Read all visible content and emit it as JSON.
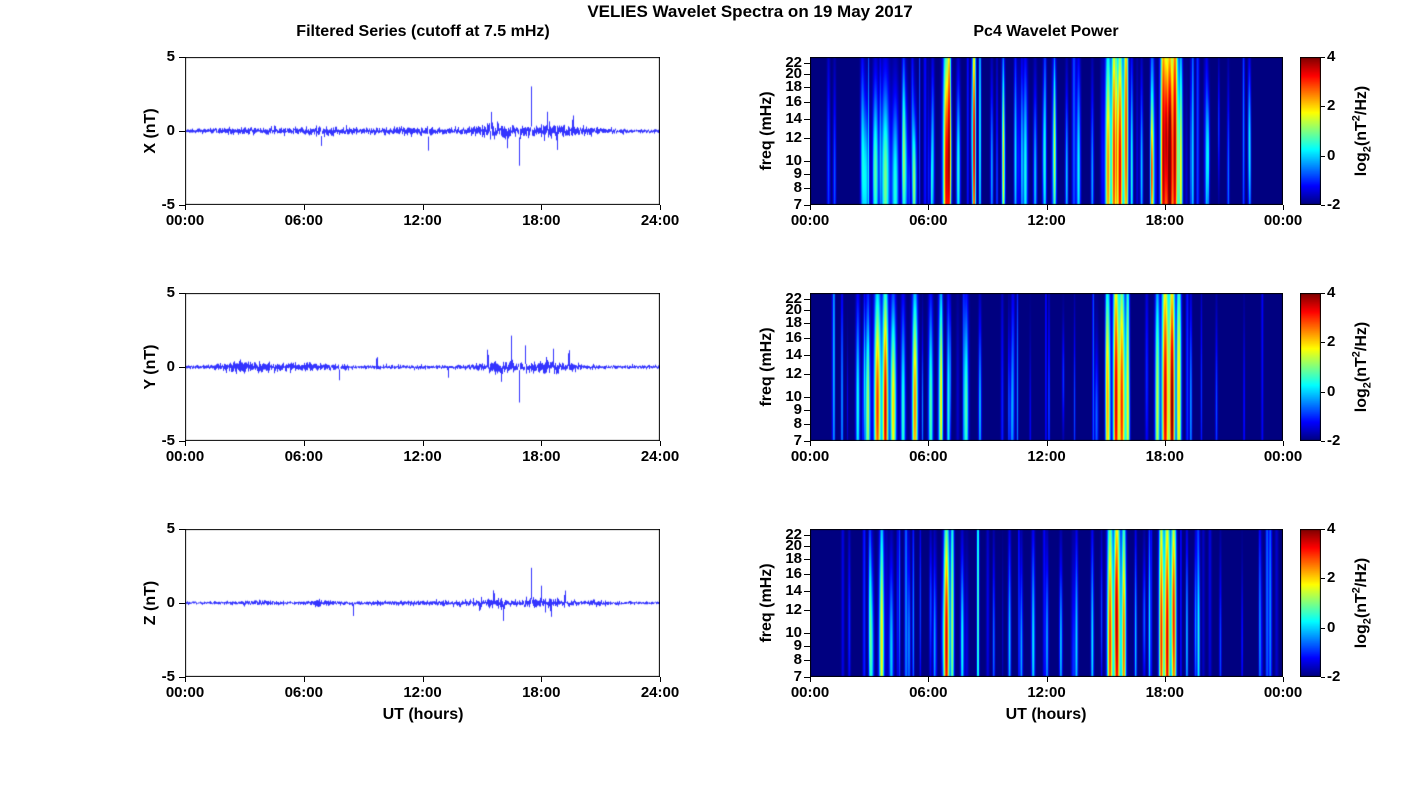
{
  "chart_data": {
    "figure_title": "VELIES Wavelet Spectra on 19 May 2017",
    "left_column": {
      "title": "Filtered Series (cutoff at 7.5 mHz)",
      "type": "line",
      "xlabel": "UT (hours)",
      "x_tick_labels": [
        "00:00",
        "06:00",
        "12:00",
        "18:00",
        "24:00"
      ],
      "x_tick_hours": [
        0,
        6,
        12,
        18,
        24
      ],
      "xlim_hours": [
        0,
        24
      ],
      "ylim": [
        -5,
        5
      ],
      "y_tick_labels": [
        "5",
        "0",
        "-5"
      ],
      "y_tick_values": [
        5,
        0,
        -5
      ],
      "line_color": "#0000FF",
      "envelope_format": [
        "t_hours",
        "width_hours",
        "extra_noise_amp_nT"
      ],
      "spike_format": [
        "t_hours",
        "amplitude_nT"
      ],
      "panels": [
        {
          "ylabel": "X (nT)",
          "base_noise": 0.07,
          "envelope": [
            [
              3.5,
              1.2,
              0.05
            ],
            [
              7.0,
              0.8,
              0.07
            ],
            [
              11.0,
              2.5,
              0.06
            ],
            [
              15.7,
              0.8,
              0.15
            ],
            [
              18.5,
              1.0,
              0.16
            ],
            [
              20.5,
              0.8,
              0.05
            ]
          ],
          "spikes": [
            [
              6.9,
              -1.3
            ],
            [
              12.3,
              -1.4
            ],
            [
              15.5,
              1.2
            ],
            [
              16.3,
              -1.1
            ],
            [
              16.9,
              -2.3
            ],
            [
              17.5,
              2.9
            ],
            [
              18.3,
              1.3
            ],
            [
              18.8,
              -1.2
            ],
            [
              19.6,
              1.0
            ]
          ]
        },
        {
          "ylabel": "Y (nT)",
          "base_noise": 0.06,
          "envelope": [
            [
              2.5,
              0.6,
              0.1
            ],
            [
              3.8,
              0.8,
              0.1
            ],
            [
              5.5,
              0.5,
              0.06
            ],
            [
              7.0,
              0.8,
              0.05
            ],
            [
              15.8,
              0.7,
              0.14
            ],
            [
              18.3,
              1.0,
              0.14
            ]
          ],
          "spikes": [
            [
              7.8,
              -0.9
            ],
            [
              9.7,
              0.7
            ],
            [
              13.3,
              -0.7
            ],
            [
              15.3,
              1.1
            ],
            [
              16.0,
              -1.2
            ],
            [
              16.5,
              2.2
            ],
            [
              16.9,
              -2.1
            ],
            [
              17.2,
              1.7
            ],
            [
              18.6,
              1.2
            ],
            [
              19.4,
              1.1
            ]
          ]
        },
        {
          "ylabel": "Z (nT)",
          "base_noise": 0.05,
          "envelope": [
            [
              3.5,
              0.7,
              0.05
            ],
            [
              7.0,
              0.5,
              0.06
            ],
            [
              12.5,
              2.0,
              0.04
            ],
            [
              15.5,
              0.7,
              0.1
            ],
            [
              18.2,
              0.9,
              0.12
            ],
            [
              21.0,
              0.6,
              0.04
            ]
          ],
          "spikes": [
            [
              8.5,
              -0.8
            ],
            [
              14.9,
              -0.6
            ],
            [
              15.6,
              0.9
            ],
            [
              16.1,
              -1.1
            ],
            [
              17.5,
              2.5
            ],
            [
              18.0,
              1.2
            ],
            [
              18.5,
              -0.9
            ],
            [
              19.2,
              0.8
            ]
          ]
        }
      ]
    },
    "right_column": {
      "title": "Pc4 Wavelet Power",
      "type": "heatmap",
      "xlabel": "UT (hours)",
      "x_tick_labels": [
        "00:00",
        "06:00",
        "12:00",
        "18:00",
        "00:00"
      ],
      "x_tick_hours": [
        0,
        6,
        12,
        18,
        24
      ],
      "ylabel": "freq (mHz)",
      "freq_tick_labels": [
        "22",
        "20",
        "18",
        "16",
        "14",
        "12",
        "10",
        "9",
        "8",
        "7"
      ],
      "freq_tick_values": [
        22,
        20,
        18,
        16,
        14,
        12,
        10,
        9,
        8,
        7
      ],
      "freq_lim_mhz": [
        7,
        23
      ],
      "freq_scale": "log",
      "colormap": "jet",
      "colorbar": {
        "label": "log_2(nT^2/Hz)",
        "label_parts": [
          "log",
          "2",
          "(nT",
          "2",
          "/Hz)"
        ],
        "tick_labels": [
          "4",
          "2",
          "0",
          "-2"
        ],
        "tick_values": [
          4,
          2,
          0,
          -2
        ],
        "range": [
          -2,
          4
        ]
      },
      "event_format": [
        "t_hours",
        "sigma_t_hours",
        "freq_mhz",
        "sigma_lnf",
        "peak_log2_power"
      ],
      "panels": [
        {
          "component": "X",
          "minor_streaks": 55,
          "events": [
            [
              2.8,
              0.12,
              8.5,
              0.45,
              2.2
            ],
            [
              3.3,
              0.1,
              9,
              0.5,
              2.8
            ],
            [
              3.8,
              0.15,
              8.5,
              0.55,
              3.0
            ],
            [
              4.3,
              0.12,
              8,
              0.5,
              2.5
            ],
            [
              4.8,
              0.1,
              9,
              0.45,
              2.0
            ],
            [
              5.3,
              0.08,
              8.5,
              0.4,
              1.8
            ],
            [
              6.2,
              0.06,
              10,
              0.5,
              2.0
            ],
            [
              6.9,
              0.12,
              9,
              0.8,
              5.5
            ],
            [
              7.05,
              0.05,
              14,
              0.9,
              3.2
            ],
            [
              7.5,
              0.07,
              9,
              0.5,
              2.5
            ],
            [
              8.3,
              0.06,
              10,
              1.1,
              5.0
            ],
            [
              8.6,
              0.04,
              12,
              1.0,
              2.5
            ],
            [
              9.2,
              0.05,
              9,
              0.5,
              1.8
            ],
            [
              9.8,
              0.06,
              8.5,
              0.5,
              2.0
            ],
            [
              10.4,
              0.05,
              10,
              0.6,
              2.2
            ],
            [
              10.9,
              0.08,
              9,
              0.6,
              2.4
            ],
            [
              11.4,
              0.06,
              8.5,
              0.5,
              2.0
            ],
            [
              11.9,
              0.05,
              10,
              0.7,
              2.2
            ],
            [
              12.4,
              0.06,
              9,
              0.5,
              1.8
            ],
            [
              13.0,
              0.05,
              8.5,
              0.5,
              2.0
            ],
            [
              13.6,
              0.07,
              9,
              0.6,
              2.3
            ],
            [
              14.3,
              0.05,
              8.5,
              0.5,
              1.8
            ],
            [
              15.1,
              0.1,
              9,
              0.8,
              4.5
            ],
            [
              15.4,
              0.08,
              10,
              1.0,
              5.0
            ],
            [
              15.7,
              0.1,
              9,
              0.9,
              5.5
            ],
            [
              16.0,
              0.08,
              12,
              1.0,
              4.0
            ],
            [
              16.3,
              0.05,
              9,
              0.6,
              2.5
            ],
            [
              16.8,
              0.05,
              9,
              0.5,
              2.0
            ],
            [
              17.3,
              0.05,
              10,
              0.7,
              2.2
            ],
            [
              17.9,
              0.1,
              10,
              1.1,
              5.5
            ],
            [
              18.2,
              0.12,
              9,
              1.0,
              6.0
            ],
            [
              18.5,
              0.1,
              11,
              1.1,
              5.5
            ],
            [
              18.8,
              0.06,
              9,
              0.8,
              3.5
            ],
            [
              19.4,
              0.04,
              10,
              0.9,
              2.2
            ],
            [
              20.1,
              0.05,
              9,
              0.6,
              2.0
            ],
            [
              21.2,
              0.04,
              8.5,
              0.5,
              1.5
            ],
            [
              22.3,
              0.04,
              9,
              0.5,
              1.3
            ]
          ]
        },
        {
          "component": "Y",
          "minor_streaks": 28,
          "events": [
            [
              1.6,
              0.04,
              9,
              0.7,
              1.8
            ],
            [
              2.4,
              0.07,
              9,
              0.6,
              2.4
            ],
            [
              2.9,
              0.1,
              8.5,
              0.6,
              3.0
            ],
            [
              3.4,
              0.12,
              9,
              0.7,
              5.0
            ],
            [
              3.8,
              0.1,
              8.5,
              0.8,
              5.5
            ],
            [
              4.2,
              0.1,
              9,
              0.6,
              4.0
            ],
            [
              4.7,
              0.08,
              8.5,
              0.6,
              2.6
            ],
            [
              5.3,
              0.1,
              9,
              0.7,
              4.5
            ],
            [
              6.1,
              0.08,
              9,
              0.6,
              2.8
            ],
            [
              6.6,
              0.08,
              9.5,
              0.7,
              3.0
            ],
            [
              7.0,
              0.06,
              9,
              0.6,
              2.5
            ],
            [
              7.9,
              0.08,
              9,
              0.6,
              2.8
            ],
            [
              8.6,
              0.05,
              9,
              0.5,
              2.0
            ],
            [
              10.5,
              0.03,
              10,
              0.8,
              1.6
            ],
            [
              12.1,
              0.03,
              9,
              0.6,
              1.4
            ],
            [
              13.4,
              0.03,
              9,
              0.5,
              1.2
            ],
            [
              15.1,
              0.08,
              9,
              0.8,
              4.0
            ],
            [
              15.5,
              0.1,
              9.5,
              1.0,
              5.5
            ],
            [
              15.8,
              0.1,
              9,
              0.9,
              5.0
            ],
            [
              16.1,
              0.06,
              11,
              0.9,
              3.5
            ],
            [
              17.6,
              0.08,
              9,
              0.8,
              3.5
            ],
            [
              18.0,
              0.12,
              9.5,
              1.0,
              5.5
            ],
            [
              18.35,
              0.1,
              9,
              1.0,
              6.0
            ],
            [
              18.7,
              0.08,
              10,
              0.9,
              4.0
            ],
            [
              19.3,
              0.04,
              9,
              0.6,
              1.8
            ],
            [
              20.6,
              0.04,
              9,
              0.5,
              1.2
            ],
            [
              22.0,
              0.03,
              8.5,
              0.5,
              1.0
            ]
          ]
        },
        {
          "component": "Z",
          "minor_streaks": 42,
          "events": [
            [
              3.1,
              0.08,
              8.5,
              0.5,
              2.2
            ],
            [
              3.6,
              0.1,
              9,
              0.6,
              2.6
            ],
            [
              4.1,
              0.08,
              8.5,
              0.5,
              2.0
            ],
            [
              5.0,
              0.05,
              9,
              0.5,
              1.6
            ],
            [
              6.3,
              0.05,
              9,
              0.5,
              1.8
            ],
            [
              6.9,
              0.1,
              9,
              0.8,
              5.5
            ],
            [
              7.2,
              0.06,
              12,
              0.9,
              3.0
            ],
            [
              7.7,
              0.06,
              9,
              0.5,
              2.4
            ],
            [
              8.5,
              0.04,
              12,
              1.3,
              3.0
            ],
            [
              9.3,
              0.04,
              9,
              0.5,
              1.5
            ],
            [
              10.1,
              0.05,
              9,
              0.6,
              2.0
            ],
            [
              10.7,
              0.05,
              8.5,
              0.5,
              1.8
            ],
            [
              11.3,
              0.06,
              9,
              0.6,
              2.2
            ],
            [
              12.0,
              0.05,
              9,
              0.5,
              1.8
            ],
            [
              12.7,
              0.05,
              8.5,
              0.5,
              1.6
            ],
            [
              13.5,
              0.05,
              9,
              0.6,
              2.0
            ],
            [
              14.3,
              0.05,
              9,
              0.6,
              2.2
            ],
            [
              15.2,
              0.1,
              9,
              0.9,
              5.0
            ],
            [
              15.55,
              0.1,
              9.5,
              1.0,
              5.5
            ],
            [
              15.9,
              0.08,
              9,
              0.8,
              4.0
            ],
            [
              16.5,
              0.04,
              9,
              0.6,
              2.0
            ],
            [
              17.2,
              0.04,
              10,
              0.7,
              2.2
            ],
            [
              17.8,
              0.08,
              9.5,
              1.0,
              5.0
            ],
            [
              18.1,
              0.1,
              9,
              1.0,
              5.5
            ],
            [
              18.45,
              0.08,
              10,
              0.9,
              4.5
            ],
            [
              19.1,
              0.04,
              9,
              0.6,
              2.0
            ],
            [
              19.7,
              0.04,
              9,
              0.5,
              1.6
            ],
            [
              20.8,
              0.04,
              8.5,
              0.5,
              1.2
            ],
            [
              21.9,
              0.03,
              9,
              0.4,
              1.0
            ]
          ]
        }
      ]
    }
  }
}
